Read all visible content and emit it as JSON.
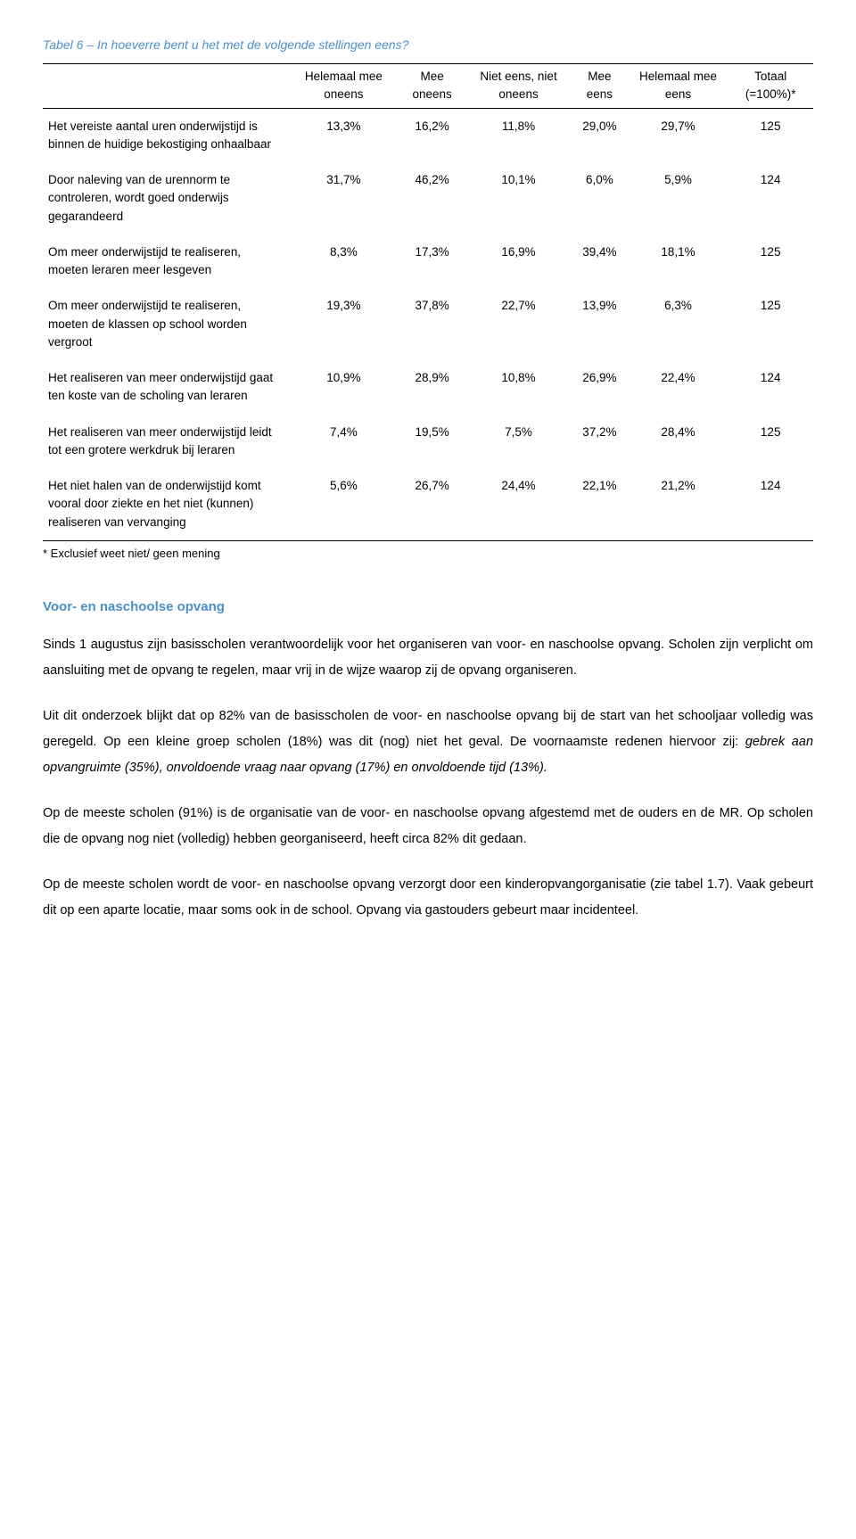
{
  "table": {
    "title": "Tabel 6 – In hoeverre bent u het met de volgende stellingen eens?",
    "columns": [
      "",
      "Helemaal mee oneens",
      "Mee oneens",
      "Niet eens, niet oneens",
      "Mee eens",
      "Helemaal mee eens",
      "Totaal (=100%)*"
    ],
    "rows": [
      {
        "label": "Het vereiste aantal uren onderwijstijd is binnen de huidige bekostiging onhaalbaar",
        "values": [
          "13,3%",
          "16,2%",
          "11,8%",
          "29,0%",
          "29,7%",
          "125"
        ]
      },
      {
        "label": "Door naleving van de urennorm te controleren, wordt goed onderwijs gegarandeerd",
        "values": [
          "31,7%",
          "46,2%",
          "10,1%",
          "6,0%",
          "5,9%",
          "124"
        ]
      },
      {
        "label": "Om meer onderwijstijd te realiseren, moeten leraren meer lesgeven",
        "values": [
          "8,3%",
          "17,3%",
          "16,9%",
          "39,4%",
          "18,1%",
          "125"
        ]
      },
      {
        "label": "Om meer onderwijstijd te realiseren, moeten de klassen op school worden vergroot",
        "values": [
          "19,3%",
          "37,8%",
          "22,7%",
          "13,9%",
          "6,3%",
          "125"
        ]
      },
      {
        "label": "Het realiseren van meer onderwijstijd gaat ten koste van de scholing van leraren",
        "values": [
          "10,9%",
          "28,9%",
          "10,8%",
          "26,9%",
          "22,4%",
          "124"
        ]
      },
      {
        "label": "Het realiseren van meer onderwijstijd leidt tot een grotere werkdruk bij leraren",
        "values": [
          "7,4%",
          "19,5%",
          "7,5%",
          "37,2%",
          "28,4%",
          "125"
        ]
      },
      {
        "label": "Het niet halen van de onderwijstijd komt vooral door ziekte en het niet (kunnen) realiseren van vervanging",
        "values": [
          "5,6%",
          "26,7%",
          "24,4%",
          "22,1%",
          "21,2%",
          "124"
        ]
      }
    ],
    "footnote": "* Exclusief weet niet/ geen mening"
  },
  "section": {
    "title": "Voor- en naschoolse opvang",
    "p1": "Sinds 1 augustus zijn basisscholen verantwoordelijk voor het organiseren van voor- en naschoolse opvang. Scholen zijn verplicht om aansluiting met de opvang te regelen, maar vrij in de wijze waarop zij de opvang organiseren.",
    "p2a": "Uit dit onderzoek blijkt dat op 82% van de basisscholen de voor- en naschoolse opvang bij de start van het schooljaar volledig was geregeld. Op een kleine groep scholen (18%) was dit (nog) niet het geval. De voornaamste redenen hiervoor zij: ",
    "p2b": "gebrek aan opvangruimte (35%), onvoldoende vraag naar opvang (17%) en onvoldoende tijd (13%).",
    "p3": "Op de meeste scholen (91%) is de organisatie van de voor- en naschoolse opvang afgestemd met de ouders en de MR. Op scholen die de opvang nog niet (volledig) hebben georganiseerd, heeft circa 82% dit gedaan.",
    "p4": "Op de meeste scholen wordt de voor- en naschoolse opvang verzorgt door een kinderopvangorganisatie (zie tabel 1.7). Vaak gebeurt dit op een aparte locatie, maar soms ook in de school. Opvang via gastouders gebeurt maar incidenteel."
  }
}
